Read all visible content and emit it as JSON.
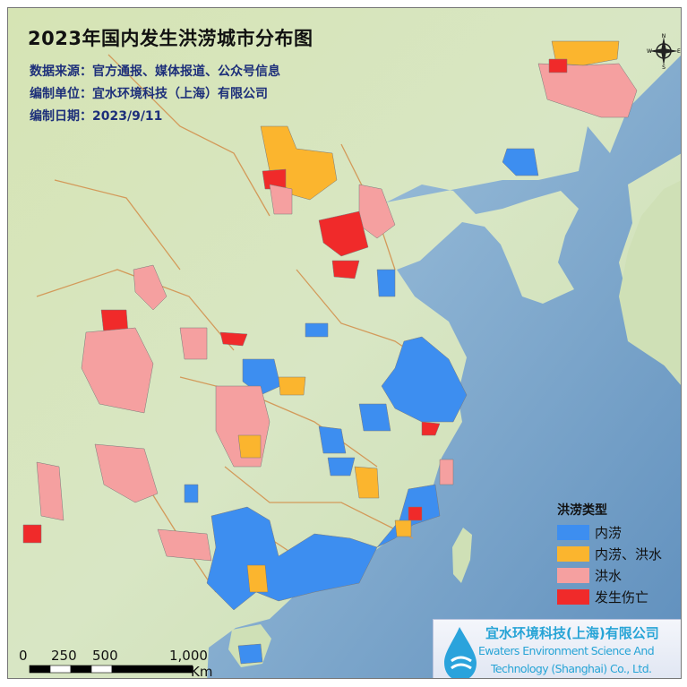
{
  "title": "2023年国内发生洪涝城市分布图",
  "info": {
    "source": "数据来源：官方通报、媒体报道、公众号信息",
    "compiler": "编制单位：宜水环境科技（上海）有限公司",
    "date": "编制日期：2023/9/11"
  },
  "legend": {
    "title": "洪涝类型",
    "items": [
      {
        "label": "内涝",
        "color": "#3d8ef0"
      },
      {
        "label": "内涝、洪水",
        "color": "#fbb52e"
      },
      {
        "label": "洪水",
        "color": "#f5a0a0"
      },
      {
        "label": "发生伤亡",
        "color": "#f02a2a"
      }
    ]
  },
  "logo": {
    "name_cn": "宜水环境科技(上海)有限公司",
    "name_en_1": "Ewaters Environment Science And",
    "name_en_2": "Technology (Shanghai) Co., Ltd."
  },
  "scale_bar": {
    "labels": [
      "0",
      "250",
      "500",
      "1,000"
    ],
    "unit": "Km"
  },
  "compass": {
    "n": "N",
    "e": "E",
    "s": "S",
    "w": "W"
  },
  "colors": {
    "ocean": "#9fc3dd",
    "land": "#d3e3bd",
    "boundary": "#d39a5a"
  }
}
